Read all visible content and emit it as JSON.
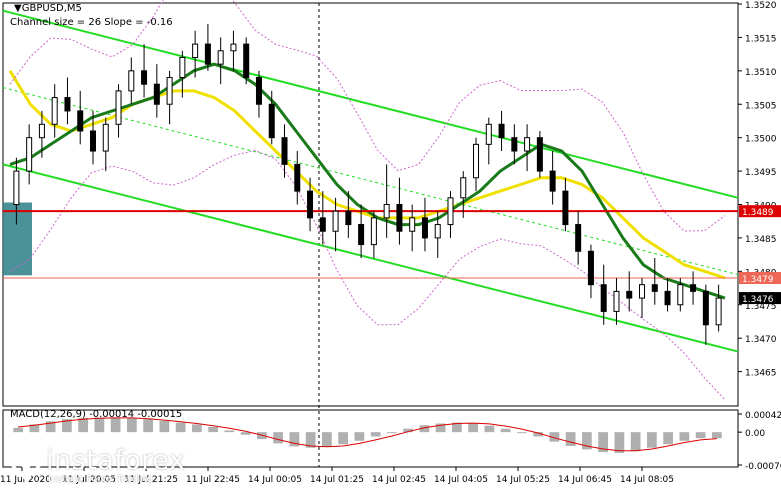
{
  "window": {
    "title": "GBPUSD,M5",
    "subtitle": "Channel size = 26 Slope = -0.16",
    "macd_label": "MACD(12,26,9) -0.00014 -0.00015"
  },
  "branding": {
    "name": "instaforex",
    "tagline": "Instant Forex Trading"
  },
  "colors": {
    "candle": "#000000",
    "channel": "#22dd22",
    "channel_mid": "#22dd22",
    "ma_fast": "#1a7a1a",
    "ma_slow": "#f0e000",
    "bands": "#cc66cc",
    "support": "#dd0000",
    "resistance": "#ee6655",
    "price_box": "#dd0000",
    "current_box": "#000000",
    "macd_hist": "#b0b0b0",
    "macd_signal": "#dd0000",
    "highlight": "#2a7f86"
  },
  "chart_data": {
    "type": "candlestick",
    "symbol": "GBPUSD",
    "timeframe": "M5",
    "ylim": [
      1.346,
      1.352
    ],
    "y_ticks": [
      "1.3520",
      "1.3515",
      "1.3510",
      "1.3505",
      "1.3500",
      "1.3495",
      "1.3490",
      "1.3485",
      "1.3480",
      "1.3475",
      "1.3470",
      "1.3465"
    ],
    "x_ticks": [
      "11 Jul 2020",
      "11 Jul 20:05",
      "11 Jul 21:25",
      "11 Jul 22:45",
      "14 Jul 00:05",
      "14 Jul 01:25",
      "14 Jul 02:45",
      "14 Jul 04:05",
      "14 Jul 05:25",
      "14 Jul 06:45",
      "14 Jul 08:05"
    ],
    "levels": [
      {
        "name": "resistance",
        "value": 1.3489,
        "label": "1.3489"
      },
      {
        "name": "support",
        "value": 1.3479,
        "label": "1.3479"
      }
    ],
    "current_price": {
      "value": 1.3476,
      "label": "1.3476"
    },
    "candles": [
      [
        1.349,
        1.3497,
        1.3487,
        1.3495
      ],
      [
        1.3495,
        1.3502,
        1.3493,
        1.35
      ],
      [
        1.35,
        1.3504,
        1.3497,
        1.3502
      ],
      [
        1.3502,
        1.3508,
        1.35,
        1.3506
      ],
      [
        1.3506,
        1.3509,
        1.3502,
        1.3504
      ],
      [
        1.3504,
        1.3507,
        1.3499,
        1.3501
      ],
      [
        1.3501,
        1.3504,
        1.3496,
        1.3498
      ],
      [
        1.3498,
        1.3503,
        1.3495,
        1.3502
      ],
      [
        1.3502,
        1.3508,
        1.35,
        1.3507
      ],
      [
        1.3507,
        1.3512,
        1.3505,
        1.351
      ],
      [
        1.351,
        1.3514,
        1.3506,
        1.3508
      ],
      [
        1.3508,
        1.3511,
        1.3503,
        1.3505
      ],
      [
        1.3505,
        1.351,
        1.3502,
        1.3509
      ],
      [
        1.3509,
        1.3513,
        1.3506,
        1.3512
      ],
      [
        1.3512,
        1.3516,
        1.3509,
        1.3514
      ],
      [
        1.3514,
        1.3517,
        1.351,
        1.3511
      ],
      [
        1.3511,
        1.3515,
        1.3508,
        1.3513
      ],
      [
        1.3513,
        1.3516,
        1.351,
        1.3514
      ],
      [
        1.3514,
        1.3515,
        1.3508,
        1.3509
      ],
      [
        1.3509,
        1.351,
        1.3503,
        1.3505
      ],
      [
        1.3505,
        1.3507,
        1.3499,
        1.35
      ],
      [
        1.35,
        1.3502,
        1.3494,
        1.3496
      ],
      [
        1.3496,
        1.3498,
        1.349,
        1.3492
      ],
      [
        1.3492,
        1.3494,
        1.3486,
        1.3488
      ],
      [
        1.3488,
        1.3492,
        1.3484,
        1.3486
      ],
      [
        1.3486,
        1.3491,
        1.3483,
        1.3489
      ],
      [
        1.3489,
        1.3492,
        1.3485,
        1.3487
      ],
      [
        1.3487,
        1.349,
        1.3482,
        1.3484
      ],
      [
        1.3484,
        1.3489,
        1.3482,
        1.3488
      ],
      [
        1.3488,
        1.3496,
        1.3485,
        1.349
      ],
      [
        1.349,
        1.3494,
        1.3484,
        1.3486
      ],
      [
        1.3486,
        1.349,
        1.3483,
        1.3488
      ],
      [
        1.3488,
        1.3491,
        1.3483,
        1.3485
      ],
      [
        1.3485,
        1.3489,
        1.3482,
        1.3487
      ],
      [
        1.3487,
        1.3492,
        1.3485,
        1.3491
      ],
      [
        1.3491,
        1.3495,
        1.3488,
        1.3494
      ],
      [
        1.3494,
        1.35,
        1.3492,
        1.3499
      ],
      [
        1.3499,
        1.3503,
        1.3496,
        1.3502
      ],
      [
        1.3502,
        1.3504,
        1.3498,
        1.35
      ],
      [
        1.35,
        1.3502,
        1.3496,
        1.3498
      ],
      [
        1.3498,
        1.3502,
        1.3495,
        1.35
      ],
      [
        1.35,
        1.3501,
        1.3494,
        1.3495
      ],
      [
        1.3495,
        1.3498,
        1.349,
        1.3492
      ],
      [
        1.3492,
        1.3494,
        1.3486,
        1.3487
      ],
      [
        1.3487,
        1.3489,
        1.3481,
        1.3483
      ],
      [
        1.3483,
        1.3484,
        1.3476,
        1.3478
      ],
      [
        1.3478,
        1.3481,
        1.3472,
        1.3474
      ],
      [
        1.3474,
        1.3479,
        1.3472,
        1.3477
      ],
      [
        1.3477,
        1.348,
        1.3474,
        1.3476
      ],
      [
        1.3476,
        1.3479,
        1.3473,
        1.3478
      ],
      [
        1.3478,
        1.3482,
        1.3475,
        1.3477
      ],
      [
        1.3477,
        1.3479,
        1.3474,
        1.3475
      ],
      [
        1.3475,
        1.3479,
        1.3474,
        1.3478
      ],
      [
        1.3478,
        1.348,
        1.3475,
        1.3477
      ],
      [
        1.3477,
        1.3478,
        1.3469,
        1.3472
      ],
      [
        1.3472,
        1.3478,
        1.3471,
        1.3476
      ]
    ],
    "channel": {
      "upper": [
        1.3519,
        1.3491
      ],
      "lower": [
        1.3496,
        1.3468
      ],
      "mid": [
        1.35075,
        1.34795
      ]
    },
    "ma_fast": [
      1.3496,
      1.3497,
      1.3499,
      1.3501,
      1.3503,
      1.3504,
      1.3505,
      1.3506,
      1.3508,
      1.351,
      1.3511,
      1.351,
      1.3508,
      1.3505,
      1.3501,
      1.3497,
      1.3493,
      1.349,
      1.3488,
      1.3487,
      1.3487,
      1.3488,
      1.349,
      1.3492,
      1.3495,
      1.3497,
      1.3499,
      1.3498,
      1.3495,
      1.349,
      1.3485,
      1.3481,
      1.3479,
      1.3478,
      1.3477,
      1.3476
    ],
    "ma_slow": [
      1.351,
      1.3505,
      1.3502,
      1.3501,
      1.3502,
      1.3503,
      1.3505,
      1.3506,
      1.3507,
      1.3507,
      1.3506,
      1.3504,
      1.3501,
      1.3498,
      1.3495,
      1.3492,
      1.349,
      1.3489,
      1.3488,
      1.3488,
      1.3488,
      1.3489,
      1.349,
      1.3491,
      1.3492,
      1.3493,
      1.3494,
      1.3494,
      1.3493,
      1.3491,
      1.3488,
      1.3485,
      1.3483,
      1.3481,
      1.348,
      1.3479
    ],
    "macd": {
      "ylim": [
        -0.00076,
        0.00042
      ],
      "y_ticks": [
        "0.00042",
        "0.00",
        "-0.00076"
      ],
      "histogram": [
        0.0001,
        0.00018,
        0.00025,
        0.0003,
        0.00033,
        0.00034,
        0.00034,
        0.00033,
        0.0003,
        0.00026,
        0.00022,
        0.00018,
        0.00012,
        4e-05,
        -6e-05,
        -0.00016,
        -0.00026,
        -0.00033,
        -0.00036,
        -0.00034,
        -0.00028,
        -0.0002,
        -0.0001,
        -2e-05,
        8e-05,
        0.00016,
        0.0002,
        0.00022,
        0.0002,
        0.00015,
        8e-05,
        0.0,
        -0.0001,
        -0.00022,
        -0.00032,
        -0.0004,
        -0.00046,
        -0.00048,
        -0.00044,
        -0.00036,
        -0.00028,
        -0.0002,
        -0.00014,
        -0.00014
      ],
      "signal": [
        0.00012,
        0.00016,
        0.00021,
        0.00026,
        0.0003,
        0.00032,
        0.00033,
        0.00033,
        0.00031,
        0.00028,
        0.00024,
        0.0002,
        0.00015,
        9e-05,
        2e-05,
        -7e-05,
        -0.00017,
        -0.00026,
        -0.00032,
        -0.00034,
        -0.00032,
        -0.00026,
        -0.00018,
        -9e-05,
        1e-05,
        0.0001,
        0.00016,
        0.0002,
        0.00021,
        0.00019,
        0.00014,
        7e-05,
        -2e-05,
        -0.00013,
        -0.00023,
        -0.00032,
        -0.00039,
        -0.00043,
        -0.00043,
        -0.00039,
        -0.00032,
        -0.00024,
        -0.00018,
        -0.00015
      ]
    }
  }
}
